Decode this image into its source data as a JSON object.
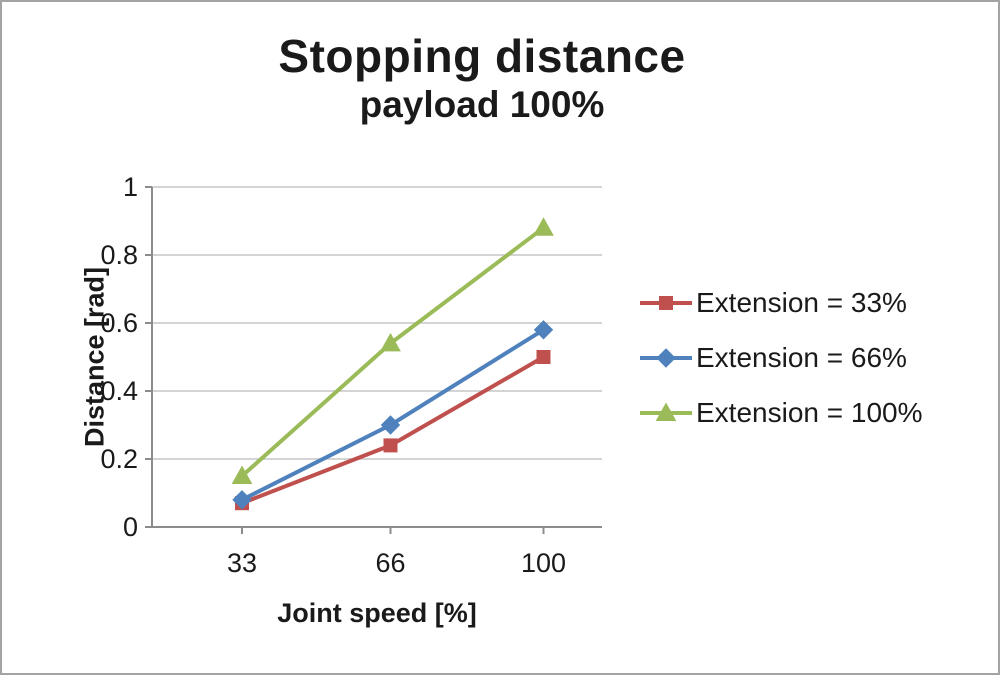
{
  "chart_data": {
    "type": "line",
    "title": "Stopping distance",
    "subtitle": "payload 100%",
    "xlabel": "Joint speed [%]",
    "ylabel": "Distance [rad]",
    "x": [
      33,
      66,
      100
    ],
    "x_tick_labels": [
      "33",
      "66",
      "100"
    ],
    "y_ticks": [
      0,
      0.2,
      0.4,
      0.6,
      0.8,
      1
    ],
    "y_tick_labels": [
      "0",
      "0.2",
      "0.4",
      "0.6",
      "0.8",
      "1"
    ],
    "xlim": [
      13,
      113
    ],
    "ylim": [
      0,
      1
    ],
    "grid": true,
    "legend_position": "right",
    "series": [
      {
        "name": "Extension = 33%",
        "color": "#C0504D",
        "marker": "square",
        "values": [
          0.07,
          0.24,
          0.5
        ]
      },
      {
        "name": "Extension = 66%",
        "color": "#4F81BD",
        "marker": "diamond",
        "values": [
          0.08,
          0.3,
          0.58
        ]
      },
      {
        "name": "Extension = 100%",
        "color": "#9BBB59",
        "marker": "triangle",
        "values": [
          0.15,
          0.54,
          0.88
        ]
      }
    ],
    "colors": {
      "gridline": "#c6c6c6",
      "axis": "#8c8c8c",
      "text": "#1a1a1a"
    }
  }
}
